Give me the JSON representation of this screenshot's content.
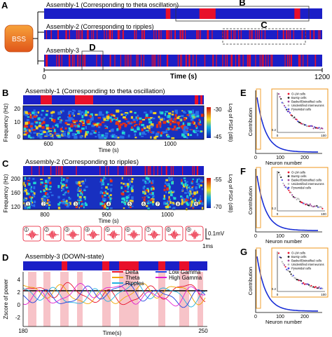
{
  "panel_labels": {
    "A": "A",
    "B": "B",
    "C": "C",
    "D": "D",
    "E": "E",
    "F": "F",
    "G": "G"
  },
  "colors": {
    "raster_bg": "#1b1fc7",
    "event": "#e8102a",
    "spec_bg": "#1830c0",
    "shade": "#f7c3c8",
    "bss_box": "#f07d1c",
    "inset_border": "#f0a030",
    "series_delta": "#e8102a",
    "series_theta": "#f0a400",
    "series_ripples": "#23b0e0",
    "series_lowgamma": "#2040e0",
    "series_highgamma": "#e020d0",
    "curve_E": "#1a2fd6"
  },
  "panelA": {
    "bss_label": "BSS",
    "assembly1": "Assembly-1 (Corresponding to theta oscillation)",
    "assembly2": "Assembly-2 (Corresponding to ripples)",
    "assembly3": "Assembly-3",
    "box_B": "B",
    "box_C": "C",
    "box_D": "D",
    "x_title": "Time (s)",
    "x_start": "0",
    "x_end": "1200"
  },
  "panelB": {
    "title": "Assembly-1 (Corresponding to theta oscillation)",
    "ylabel": "Frequency (Hz)",
    "xlabel": "Time (s)",
    "yticks": [
      "20",
      "10",
      "0"
    ],
    "xticks": [
      "600",
      "800",
      "1000"
    ],
    "cbar_label": "Log of PSD (dB)",
    "cbar_top": "-30",
    "cbar_bottom": "-45"
  },
  "panelC": {
    "title": "Assembly-2 (Corresponding to ripples)",
    "ylabel": "Frequency (Hz)",
    "xlabel": "Time (s)",
    "yticks": [
      "200",
      "160",
      "120"
    ],
    "xticks": [
      "800",
      "900",
      "1000"
    ],
    "cbar_label": "Log of PSD (dB)",
    "cbar_top": "-55",
    "cbar_bottom": "-70",
    "ripple_ids": [
      "1",
      "2",
      "3",
      "4",
      "5",
      "6",
      "7",
      "8",
      "9"
    ],
    "scale_v": "0.1mV",
    "scale_t": "1ms"
  },
  "panelD": {
    "title": "Assembly-3 (DOWN-state)",
    "ylabel": "Zscore of power",
    "xlabel": "Time(s)",
    "yticks": [
      "4",
      "2",
      "0",
      "-2"
    ],
    "x_start": "180",
    "x_end": "250",
    "legend": [
      "Delta",
      "Theta",
      "Ripples",
      "Low Gamma",
      "High Gamma"
    ]
  },
  "sidePanels": {
    "ylabel": "Contribution",
    "xlabel": "Neuron number",
    "xticks": [
      "0",
      "100",
      "200"
    ],
    "inset_xticks": [
      "0",
      "100"
    ],
    "inset_ytick": "0.2",
    "legend": [
      "O-LM cells",
      "Bursty cells",
      "Basket/Bistratified cells",
      "Unidentified interneurons",
      "Pyramidal cells"
    ],
    "legend_colors": [
      "#e8102a",
      "#222222",
      "#a04a9a",
      "#b5b5b5",
      "#4a48e0"
    ]
  },
  "chart_data": [
    {
      "type": "raster",
      "panel": "A",
      "series_name": "Assembly-1 (Corresponding to theta oscillation)",
      "xlim": [
        0,
        1200
      ],
      "events": [
        [
          525,
          545
        ],
        [
          670,
          740
        ],
        [
          1080,
          1105
        ]
      ]
    },
    {
      "type": "raster",
      "panel": "A",
      "series_name": "Assembly-2 (Corresponding to ripples)",
      "xlim": [
        0,
        1200
      ]
    },
    {
      "type": "raster",
      "panel": "A",
      "series_name": "Assembly-3",
      "xlim": [
        0,
        1200
      ]
    },
    {
      "type": "heatmap",
      "panel": "B",
      "title": "Assembly-1 (Corresponding to theta oscillation)",
      "xlabel": "Time (s)",
      "ylabel": "Frequency (Hz)",
      "xlim": [
        520,
        1120
      ],
      "ylim": [
        0,
        25
      ],
      "clim": [
        -45,
        -30
      ]
    },
    {
      "type": "heatmap",
      "panel": "C",
      "title": "Assembly-2 (Corresponding to ripples)",
      "xlabel": "Time (s)",
      "ylabel": "Frequency (Hz)",
      "xlim": [
        760,
        1080
      ],
      "ylim": [
        120,
        200
      ],
      "clim": [
        -70,
        -55
      ]
    },
    {
      "type": "line",
      "panel": "D",
      "title": "Assembly-3 (DOWN-state)",
      "xlabel": "Time(s)",
      "ylabel": "Zscore of power",
      "xlim": [
        180,
        250
      ],
      "ylim": [
        -2,
        4
      ],
      "series": [
        {
          "name": "Delta"
        },
        {
          "name": "Theta"
        },
        {
          "name": "Ripples"
        },
        {
          "name": "Low Gamma"
        },
        {
          "name": "High Gamma"
        }
      ]
    },
    {
      "type": "scatter",
      "panel": "E",
      "xlabel": "Neuron number",
      "ylabel": "Contribution",
      "xlim": [
        0,
        250
      ]
    },
    {
      "type": "scatter",
      "panel": "F",
      "xlabel": "Neuron number",
      "ylabel": "Contribution",
      "xlim": [
        0,
        250
      ]
    },
    {
      "type": "scatter",
      "panel": "G",
      "xlabel": "Neuron number",
      "ylabel": "Contribution",
      "xlim": [
        0,
        250
      ]
    }
  ]
}
